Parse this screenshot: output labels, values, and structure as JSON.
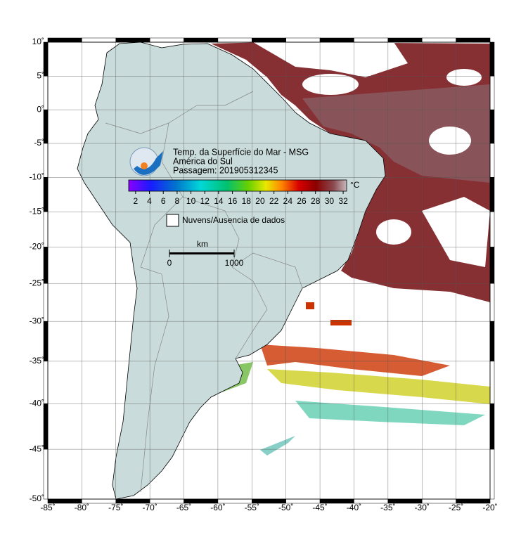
{
  "map": {
    "title": "Temp. da Superfície do Mar - MSG",
    "region": "América do Sul",
    "pass": "Passagem: 201905312345",
    "colorbar": {
      "unit": "°C",
      "lim": [
        1,
        32.5
      ],
      "ticks": [
        2,
        4,
        6,
        8,
        10,
        12,
        14,
        16,
        18,
        20,
        22,
        24,
        26,
        28,
        30,
        32
      ]
    },
    "legend": "Nuvens/Ausencia de dados",
    "scale_bar": {
      "unit": "km",
      "ticks": [
        0,
        1000
      ]
    },
    "xlim": [
      -85,
      -20
    ],
    "ylim": [
      -50,
      10
    ],
    "xticks": [
      {
        "value": -85,
        "label": "-85˚"
      },
      {
        "value": -80,
        "label": "-80˚"
      },
      {
        "value": -75,
        "label": "-75˚"
      },
      {
        "value": -70,
        "label": "-70˚"
      },
      {
        "value": -65,
        "label": "-65˚"
      },
      {
        "value": -60,
        "label": "-60˚"
      },
      {
        "value": -55,
        "label": "-55˚"
      },
      {
        "value": -50,
        "label": "-50˚"
      },
      {
        "value": -45,
        "label": "-45˚"
      },
      {
        "value": -40,
        "label": "-40˚"
      },
      {
        "value": -35,
        "label": "-35˚"
      },
      {
        "value": -30,
        "label": "-30˚"
      },
      {
        "value": -25,
        "label": "-25˚"
      },
      {
        "value": -20,
        "label": "-20˚"
      }
    ],
    "yticks": [
      {
        "value": 10,
        "label": "10˚"
      },
      {
        "value": 5,
        "label": "5˚"
      },
      {
        "value": 0,
        "label": "0˚"
      },
      {
        "value": -5,
        "label": "-5˚"
      },
      {
        "value": -10,
        "label": "-10˚"
      },
      {
        "value": -15,
        "label": "-15˚"
      },
      {
        "value": -20,
        "label": "-20˚"
      },
      {
        "value": -25,
        "label": "-25˚"
      },
      {
        "value": -30,
        "label": "-30˚"
      },
      {
        "value": -35,
        "label": "-35˚"
      },
      {
        "value": -40,
        "label": "-40˚"
      },
      {
        "value": -45,
        "label": "-45˚"
      },
      {
        "value": -50,
        "label": "-50˚"
      }
    ]
  }
}
